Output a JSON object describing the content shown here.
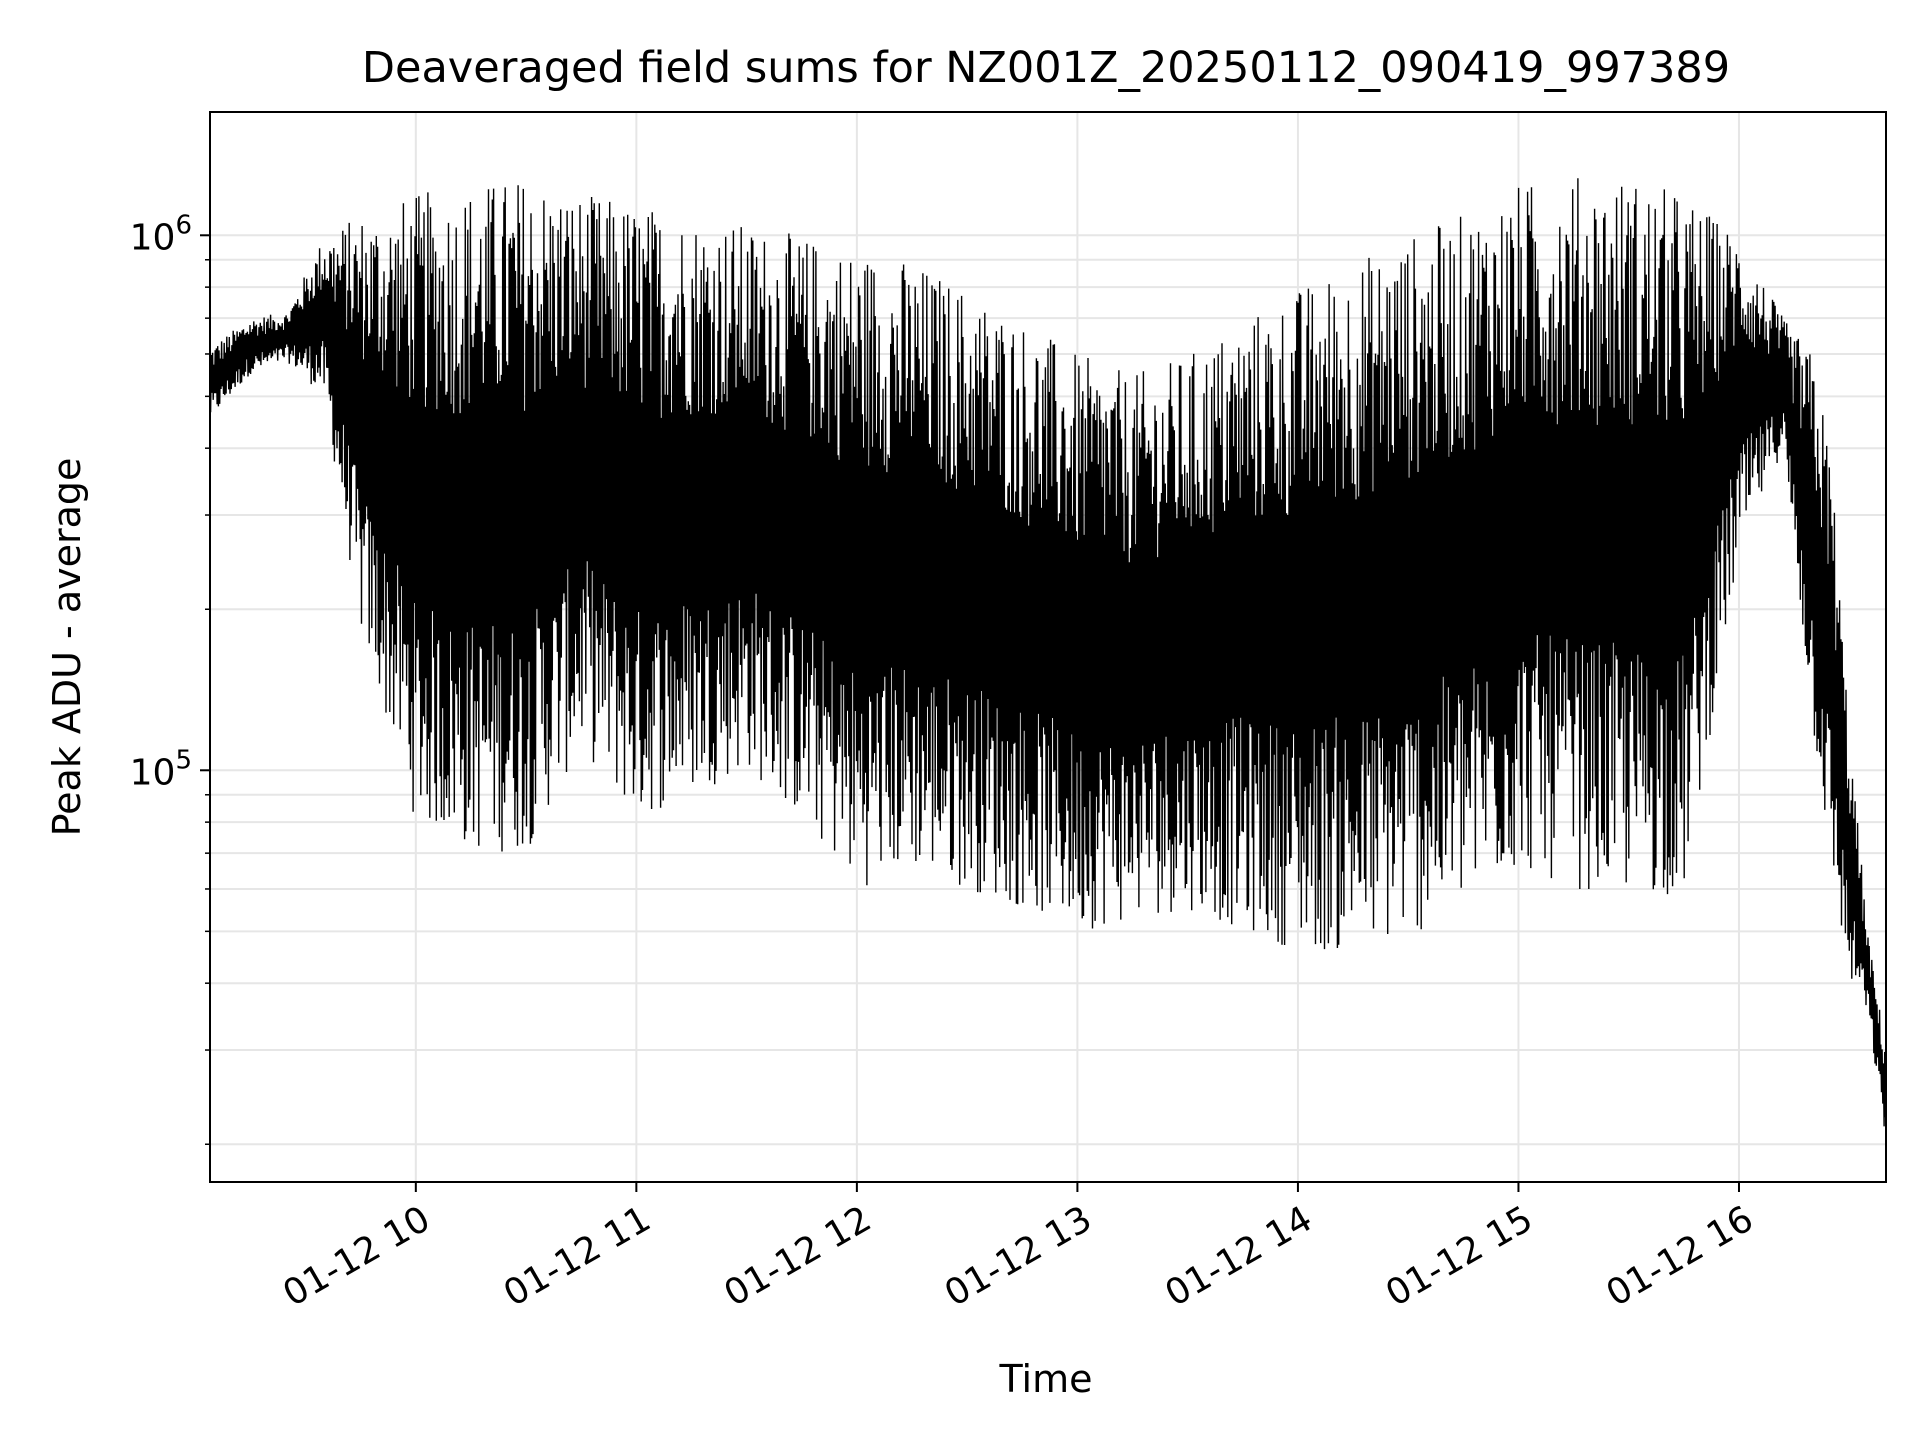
{
  "chart_data": {
    "type": "line",
    "title": "Deaveraged field sums for NZ001Z_20250112_090419_997389",
    "xlabel": "Time",
    "ylabel": "Peak ADU - average",
    "yscale": "log",
    "xlim": [
      "2025-01-12 09:04",
      "2025-01-12 16:40"
    ],
    "ylim": [
      17000,
      1700000
    ],
    "x_ticks": [
      {
        "label": "01-12 10",
        "value": "2025-01-12 10:00"
      },
      {
        "label": "01-12 11",
        "value": "2025-01-12 11:00"
      },
      {
        "label": "01-12 12",
        "value": "2025-01-12 12:00"
      },
      {
        "label": "01-12 13",
        "value": "2025-01-12 13:00"
      },
      {
        "label": "01-12 14",
        "value": "2025-01-12 14:00"
      },
      {
        "label": "01-12 15",
        "value": "2025-01-12 15:00"
      },
      {
        "label": "01-12 16",
        "value": "2025-01-12 16:00"
      }
    ],
    "y_ticks": [
      {
        "base": "10",
        "exp": "5",
        "value": 100000
      },
      {
        "base": "10",
        "exp": "6",
        "value": 1000000
      }
    ],
    "grid": true,
    "line_color": "#000000",
    "grid_color": "#e6e6e6",
    "series": [
      {
        "x": [
          "2025-01-12 09:04",
          "2025-01-12 09:15",
          "2025-01-12 09:25",
          "2025-01-12 09:35",
          "2025-01-12 09:45",
          "2025-01-12 10:00",
          "2025-01-12 10:15",
          "2025-01-12 10:30",
          "2025-01-12 10:45",
          "2025-01-12 11:00",
          "2025-01-12 11:15",
          "2025-01-12 11:30",
          "2025-01-12 11:45",
          "2025-01-12 12:00",
          "2025-01-12 12:15",
          "2025-01-12 12:30",
          "2025-01-12 12:45",
          "2025-01-12 13:00",
          "2025-01-12 13:15",
          "2025-01-12 13:30",
          "2025-01-12 13:45",
          "2025-01-12 14:00",
          "2025-01-12 14:15",
          "2025-01-12 14:30",
          "2025-01-12 14:45",
          "2025-01-12 15:00",
          "2025-01-12 15:15",
          "2025-01-12 15:30",
          "2025-01-12 15:45",
          "2025-01-12 16:00",
          "2025-01-12 16:12",
          "2025-01-12 16:20",
          "2025-01-12 16:25",
          "2025-01-12 16:30",
          "2025-01-12 16:35",
          "2025-01-12 16:40"
        ],
        "low": [
          450000,
          550000,
          580000,
          500000,
          180000,
          80000,
          70000,
          70000,
          110000,
          80000,
          90000,
          100000,
          80000,
          60000,
          65000,
          60000,
          55000,
          50000,
          52000,
          55000,
          50000,
          46000,
          45000,
          48000,
          55000,
          65000,
          60000,
          58000,
          58000,
          250000,
          400000,
          120000,
          65000,
          40000,
          35000,
          20000
        ],
        "high": [
          620000,
          700000,
          720000,
          1000000,
          1100000,
          1200000,
          1250000,
          1300000,
          1200000,
          1150000,
          1100000,
          1050000,
          1000000,
          950000,
          900000,
          800000,
          700000,
          600000,
          550000,
          600000,
          700000,
          800000,
          900000,
          1000000,
          1100000,
          1250000,
          1300000,
          1300000,
          1200000,
          1000000,
          700000,
          600000,
          400000,
          120000,
          50000,
          30000
        ]
      }
    ]
  }
}
